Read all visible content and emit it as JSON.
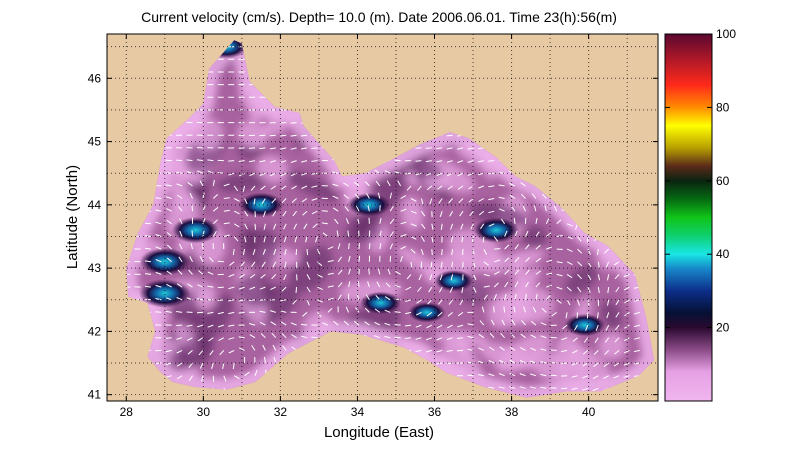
{
  "title": "Current velocity (cm/s). Depth= 10.0 (m). Date 2006.06.01. Time 23(h):56(m)",
  "xlabel": "Longitude (East)",
  "ylabel": "Latitude (North)",
  "x_ticks": [
    "28",
    "30",
    "32",
    "34",
    "36",
    "38",
    "40"
  ],
  "y_ticks": [
    "41",
    "42",
    "43",
    "44",
    "45",
    "46"
  ],
  "colorbar_ticks": [
    "20",
    "40",
    "60",
    "80",
    "100"
  ],
  "colors": {
    "land": "#e7c9a3",
    "water_low": "#eaa8e8",
    "arrows": "#ffffff",
    "grid": "#000000"
  },
  "chart_data": {
    "type": "heatmap",
    "title": "Current velocity (cm/s). Depth= 10.0 (m). Date 2006.06.01. Time 23(h):56(m)",
    "xlabel": "Longitude (East)",
    "ylabel": "Latitude (North)",
    "xlim": [
      27.5,
      41.8
    ],
    "ylim": [
      40.9,
      46.7
    ],
    "x_ticks": [
      28,
      30,
      32,
      34,
      36,
      38,
      40
    ],
    "y_ticks": [
      41,
      42,
      43,
      44,
      45,
      46
    ],
    "colorbar": {
      "range": [
        0,
        100
      ],
      "ticks": [
        20,
        40,
        60,
        80,
        100
      ],
      "unit": "cm/s"
    },
    "grid": true,
    "coastline": [
      [
        28.05,
        42.55
      ],
      [
        28.55,
        42.45
      ],
      [
        28.75,
        42.0
      ],
      [
        28.55,
        41.6
      ],
      [
        28.9,
        41.35
      ],
      [
        29.2,
        41.2
      ],
      [
        29.8,
        41.12
      ],
      [
        30.6,
        41.08
      ],
      [
        31.35,
        41.2
      ],
      [
        32.2,
        41.65
      ],
      [
        33.3,
        42.0
      ],
      [
        34.1,
        41.95
      ],
      [
        35.2,
        41.75
      ],
      [
        35.8,
        41.55
      ],
      [
        36.3,
        41.35
      ],
      [
        37.3,
        41.12
      ],
      [
        38.4,
        40.95
      ],
      [
        39.4,
        41.05
      ],
      [
        40.3,
        41.05
      ],
      [
        41.3,
        41.3
      ],
      [
        41.7,
        41.55
      ],
      [
        41.5,
        42.2
      ],
      [
        41.2,
        42.9
      ],
      [
        40.5,
        43.35
      ],
      [
        39.9,
        43.55
      ],
      [
        39.3,
        43.95
      ],
      [
        38.6,
        44.3
      ],
      [
        38.1,
        44.45
      ],
      [
        37.6,
        44.75
      ],
      [
        36.9,
        45.05
      ],
      [
        36.4,
        45.15
      ],
      [
        35.6,
        44.95
      ],
      [
        35.0,
        44.75
      ],
      [
        34.2,
        44.5
      ],
      [
        33.6,
        44.45
      ],
      [
        33.4,
        44.7
      ],
      [
        32.6,
        45.25
      ],
      [
        32.5,
        45.45
      ],
      [
        31.85,
        45.55
      ],
      [
        31.2,
        45.95
      ],
      [
        31.0,
        46.55
      ],
      [
        30.8,
        46.6
      ],
      [
        30.15,
        46.15
      ],
      [
        30.0,
        45.6
      ],
      [
        29.6,
        45.35
      ],
      [
        29.05,
        45.05
      ],
      [
        28.9,
        44.7
      ],
      [
        28.7,
        44.0
      ],
      [
        28.3,
        43.55
      ],
      [
        28.0,
        43.0
      ],
      [
        28.05,
        42.55
      ]
    ],
    "jets": [
      {
        "lon": 29.0,
        "lat": 42.6,
        "speed": 40
      },
      {
        "lon": 29.0,
        "lat": 43.1,
        "speed": 38
      },
      {
        "lon": 29.8,
        "lat": 43.6,
        "speed": 35
      },
      {
        "lon": 31.5,
        "lat": 44.0,
        "speed": 32
      },
      {
        "lon": 34.3,
        "lat": 44.0,
        "speed": 30
      },
      {
        "lon": 37.6,
        "lat": 43.6,
        "speed": 33
      },
      {
        "lon": 34.6,
        "lat": 42.45,
        "speed": 28
      },
      {
        "lon": 36.5,
        "lat": 42.8,
        "speed": 26
      },
      {
        "lon": 35.8,
        "lat": 42.3,
        "speed": 24
      },
      {
        "lon": 39.9,
        "lat": 42.1,
        "speed": 28
      },
      {
        "lon": 30.6,
        "lat": 46.5,
        "speed": 30
      }
    ],
    "eddies": [
      {
        "lon": 30.6,
        "lat": 43.0,
        "sense": "cw"
      },
      {
        "lon": 33.2,
        "lat": 43.6,
        "sense": "ccw"
      },
      {
        "lon": 37.7,
        "lat": 43.6,
        "sense": "ccw"
      },
      {
        "lon": 39.5,
        "lat": 42.1,
        "sense": "cw"
      },
      {
        "lon": 35.2,
        "lat": 42.9,
        "sense": "cw"
      },
      {
        "lon": 30.9,
        "lat": 41.8,
        "sense": "ccw"
      },
      {
        "lon": 38.6,
        "lat": 42.5,
        "sense": "cw"
      }
    ]
  }
}
